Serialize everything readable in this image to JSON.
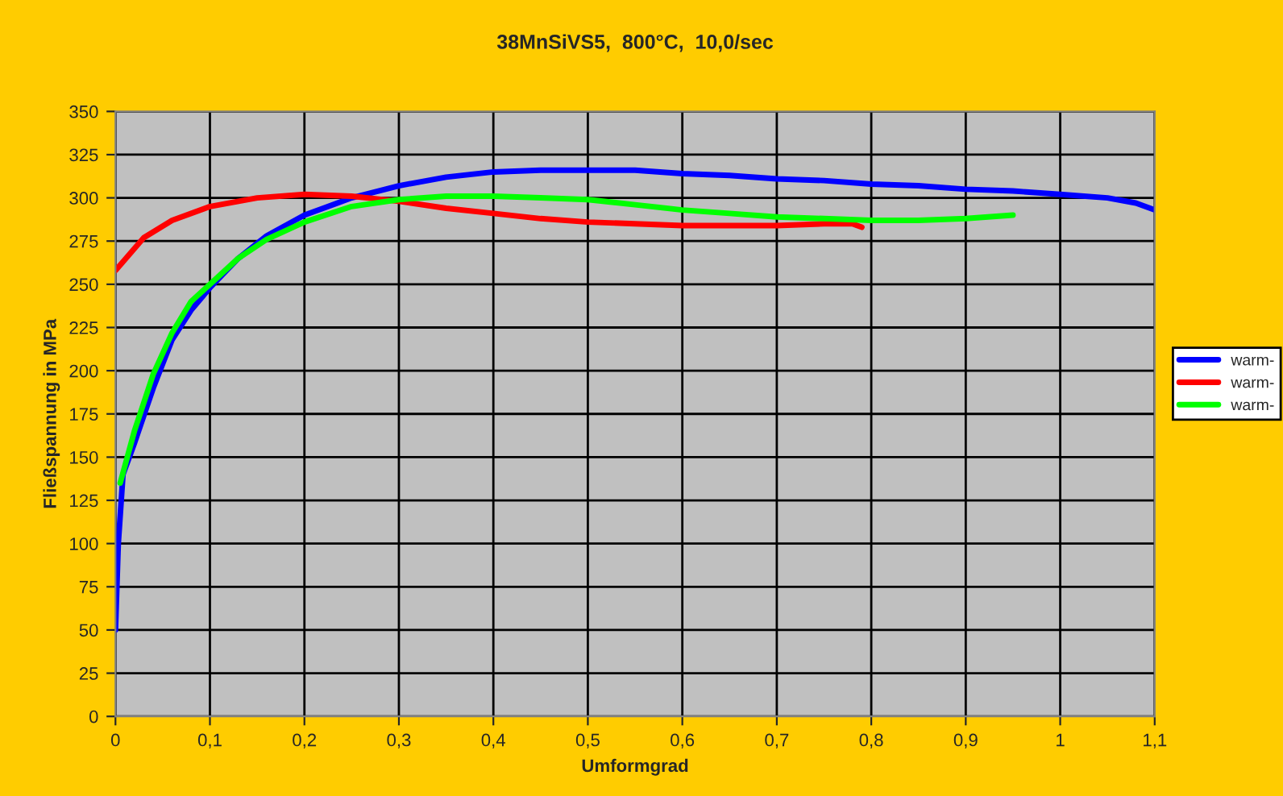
{
  "chart_data": {
    "type": "line",
    "title": "38MnSiVS5,  800°C,  10,0/sec",
    "xlabel": "Umformgrad",
    "ylabel": "Fließspannung in MPa",
    "xlim": [
      0,
      1.1
    ],
    "xticks": [
      {
        "value": 0,
        "label": "0"
      },
      {
        "value": 0.1,
        "label": "0,1"
      },
      {
        "value": 0.2,
        "label": "0,2"
      },
      {
        "value": 0.3,
        "label": "0,3"
      },
      {
        "value": 0.4,
        "label": "0,4"
      },
      {
        "value": 0.5,
        "label": "0,5"
      },
      {
        "value": 0.6,
        "label": "0,6"
      },
      {
        "value": 0.7,
        "label": "0,7"
      },
      {
        "value": 0.8,
        "label": "0,8"
      },
      {
        "value": 0.9,
        "label": "0,9"
      },
      {
        "value": 1,
        "label": "1"
      },
      {
        "value": 1.1,
        "label": "1,1"
      }
    ],
    "ylim": [
      0,
      350
    ],
    "yticks": [
      0,
      25,
      50,
      75,
      100,
      125,
      150,
      175,
      200,
      225,
      250,
      275,
      300,
      325,
      350
    ],
    "grid": true,
    "legend": "right",
    "marker": "none",
    "line_style": "solid",
    "series": [
      {
        "name": "warm-",
        "color": "#0000ff",
        "x": [
          0,
          0.003,
          0.008,
          0.02,
          0.04,
          0.06,
          0.08,
          0.1,
          0.13,
          0.16,
          0.2,
          0.25,
          0.3,
          0.35,
          0.4,
          0.45,
          0.5,
          0.55,
          0.6,
          0.65,
          0.7,
          0.75,
          0.8,
          0.85,
          0.9,
          0.95,
          1.0,
          1.05,
          1.08,
          1.1
        ],
        "values": [
          50,
          100,
          140,
          158,
          190,
          218,
          235,
          248,
          265,
          278,
          290,
          300,
          307,
          312,
          315,
          316,
          316,
          316,
          314,
          313,
          311,
          310,
          308,
          307,
          305,
          304,
          302,
          300,
          297,
          293
        ]
      },
      {
        "name": "warm-",
        "color": "#ff0000",
        "x": [
          0,
          0.03,
          0.06,
          0.1,
          0.15,
          0.2,
          0.25,
          0.3,
          0.35,
          0.4,
          0.45,
          0.5,
          0.55,
          0.6,
          0.7,
          0.75,
          0.78,
          0.79
        ],
        "values": [
          258,
          277,
          287,
          295,
          300,
          302,
          301,
          298,
          294,
          291,
          288,
          286,
          285,
          284,
          284,
          285,
          285,
          283
        ]
      },
      {
        "name": "warm-",
        "color": "#00ff00",
        "x": [
          0.005,
          0.02,
          0.04,
          0.06,
          0.08,
          0.1,
          0.13,
          0.16,
          0.2,
          0.25,
          0.3,
          0.35,
          0.4,
          0.45,
          0.5,
          0.55,
          0.6,
          0.65,
          0.7,
          0.75,
          0.8,
          0.85,
          0.9,
          0.95
        ],
        "values": [
          135,
          165,
          198,
          222,
          240,
          250,
          265,
          276,
          286,
          295,
          299,
          301,
          301,
          300,
          299,
          296,
          293,
          291,
          289,
          288,
          287,
          287,
          288,
          290
        ]
      }
    ]
  }
}
